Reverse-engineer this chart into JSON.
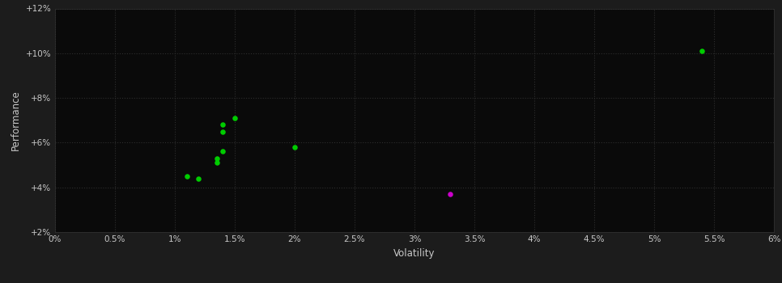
{
  "xlabel": "Volatility",
  "ylabel": "Performance",
  "background_color": "#1c1c1c",
  "plot_bg_color": "#0a0a0a",
  "text_color": "#c8c8c8",
  "xlim": [
    0.0,
    0.06
  ],
  "ylim": [
    0.02,
    0.12
  ],
  "xticks": [
    0.0,
    0.005,
    0.01,
    0.015,
    0.02,
    0.025,
    0.03,
    0.035,
    0.04,
    0.045,
    0.05,
    0.055,
    0.06
  ],
  "yticks": [
    0.02,
    0.04,
    0.06,
    0.08,
    0.1,
    0.12
  ],
  "green_points": [
    [
      0.011,
      0.045
    ],
    [
      0.012,
      0.044
    ],
    [
      0.0135,
      0.051
    ],
    [
      0.0135,
      0.053
    ],
    [
      0.014,
      0.056
    ],
    [
      0.014,
      0.065
    ],
    [
      0.014,
      0.068
    ],
    [
      0.015,
      0.071
    ],
    [
      0.02,
      0.058
    ],
    [
      0.054,
      0.101
    ]
  ],
  "magenta_points": [
    [
      0.033,
      0.037
    ]
  ],
  "marker_size": 22,
  "green_color": "#00cc00",
  "magenta_color": "#cc00cc"
}
